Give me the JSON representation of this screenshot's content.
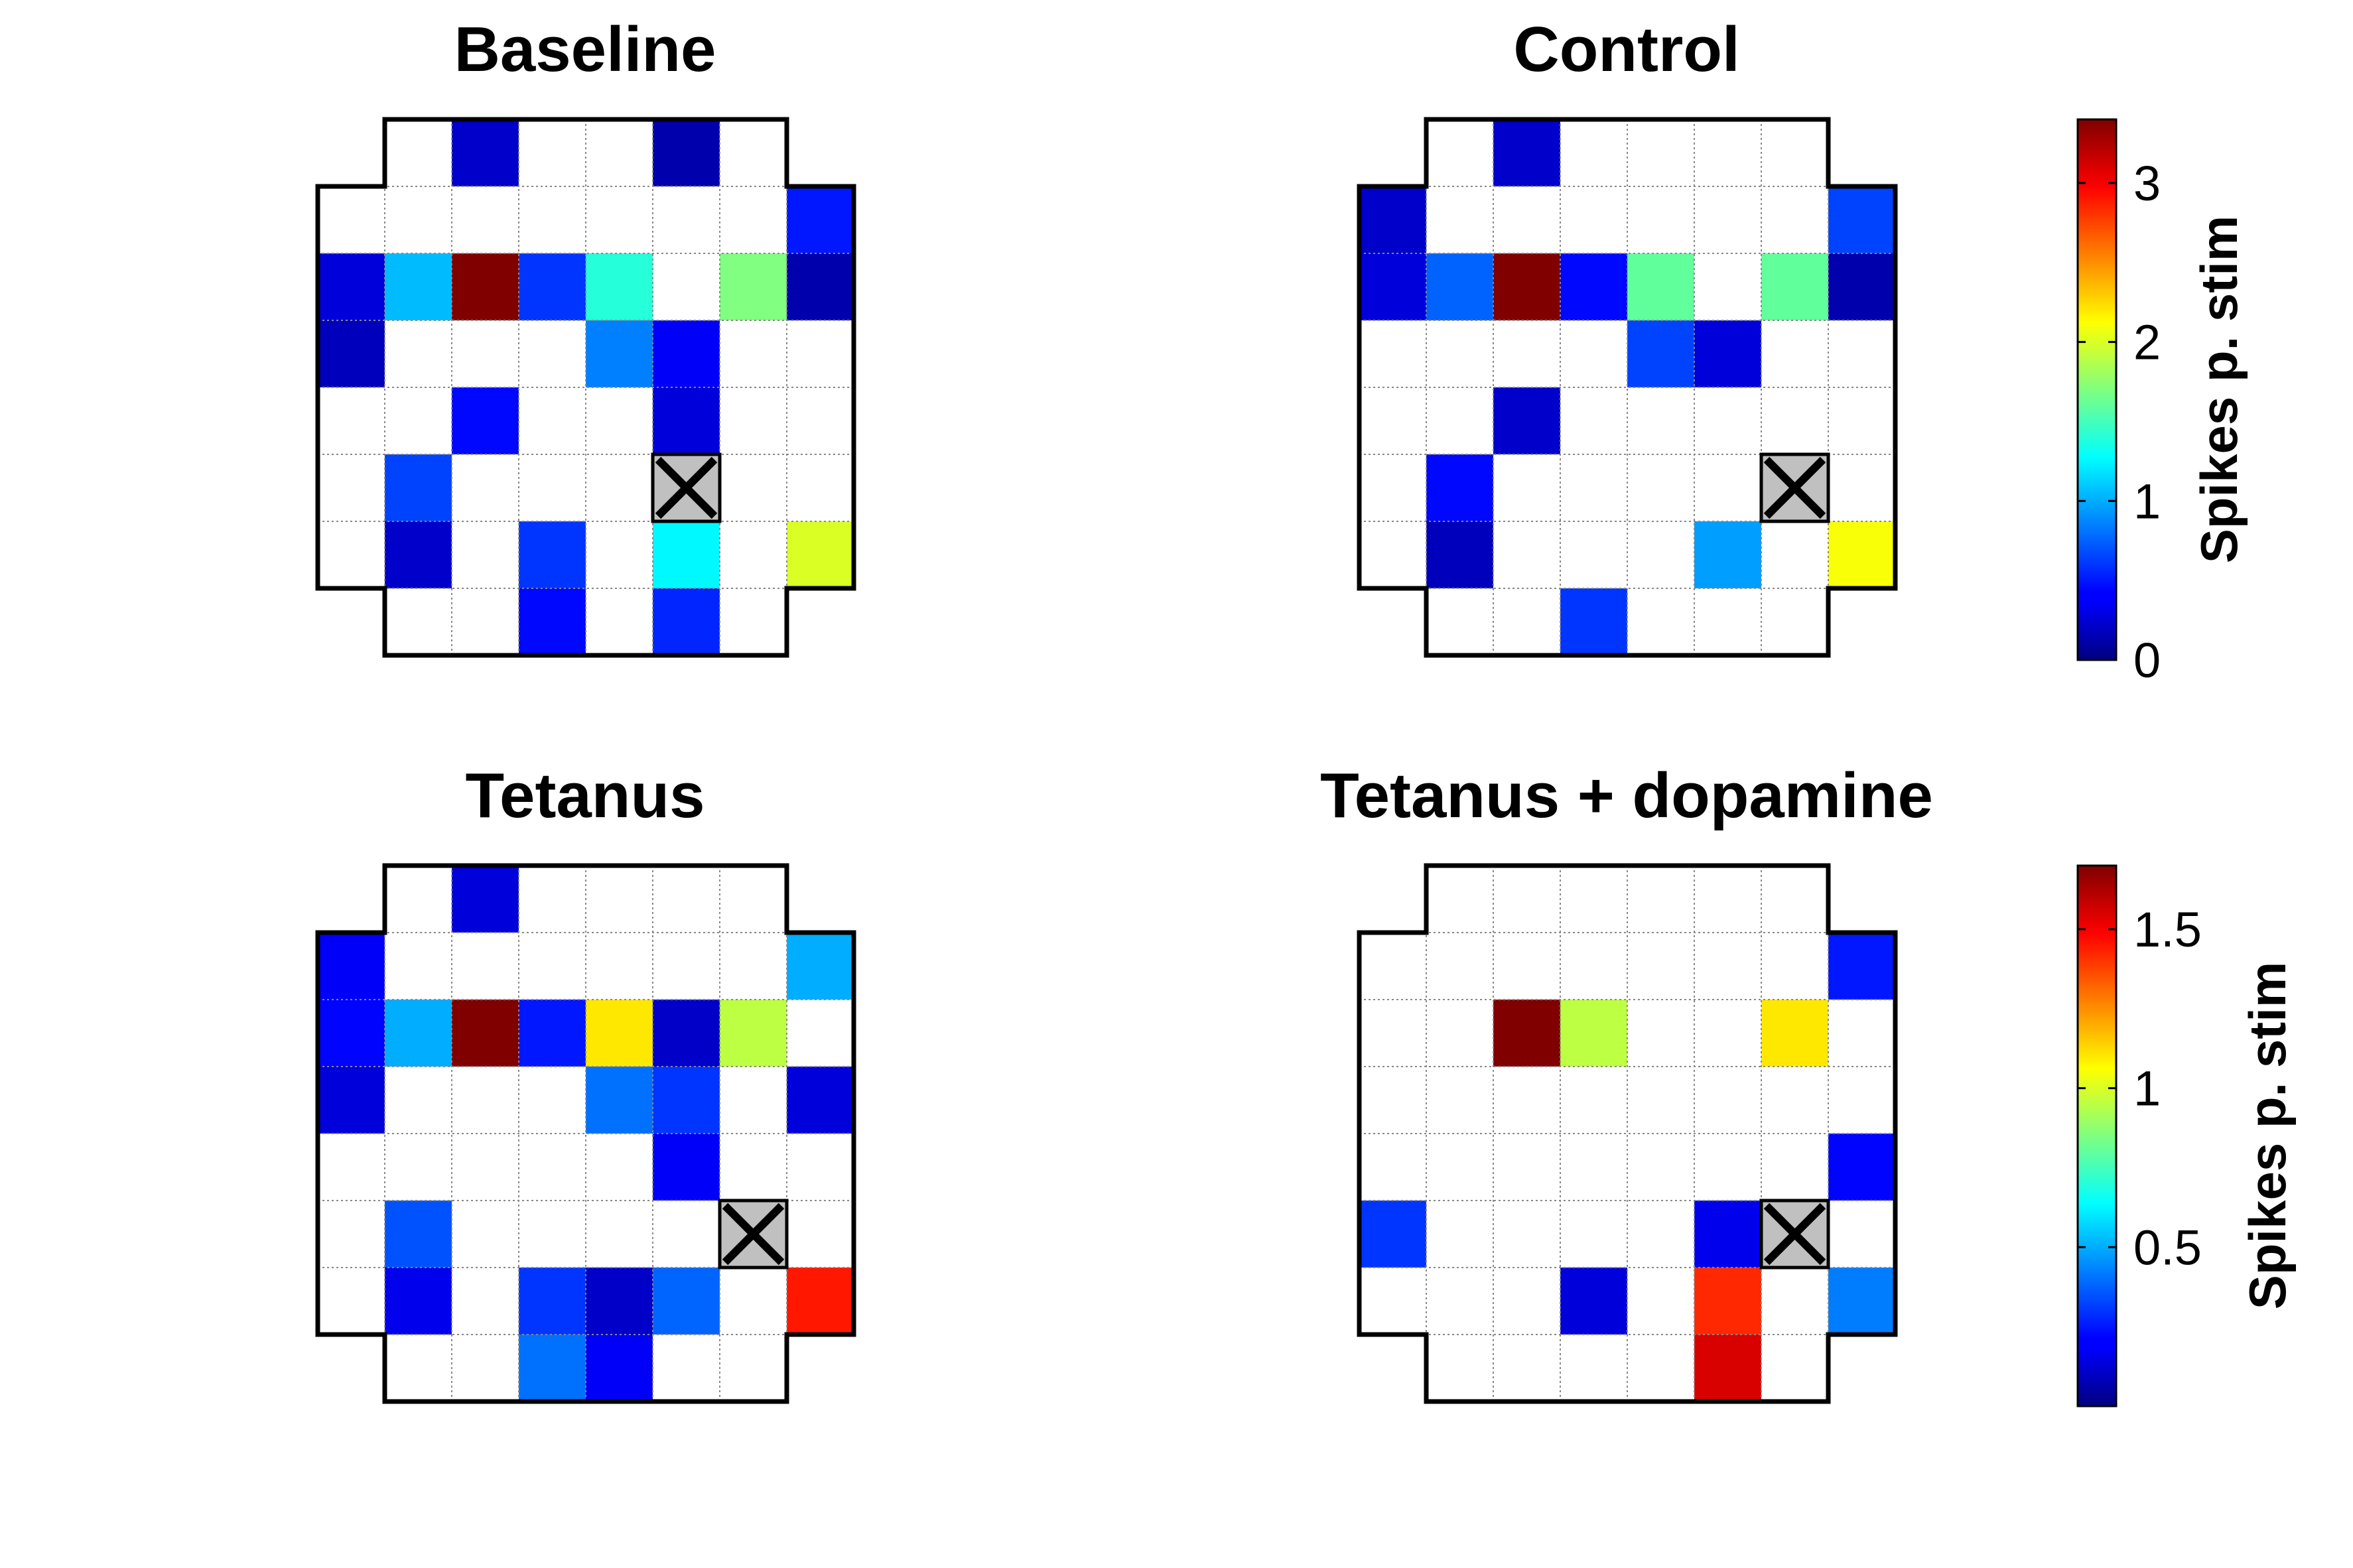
{
  "chart_data": [
    {
      "type": "heatmap",
      "title": "Baseline",
      "colorbar": "top",
      "stim_cell": [
        5,
        5
      ],
      "grid_rows": 8,
      "grid_cols": 8,
      "cells": [
        {
          "r": 0,
          "c": 2,
          "v": 0.25
        },
        {
          "r": 0,
          "c": 5,
          "v": 0.15
        },
        {
          "r": 1,
          "c": 7,
          "v": 0.5
        },
        {
          "r": 2,
          "c": 0,
          "v": 0.3
        },
        {
          "r": 2,
          "c": 1,
          "v": 1.05
        },
        {
          "r": 2,
          "c": 2,
          "v": 3.4
        },
        {
          "r": 2,
          "c": 3,
          "v": 0.6
        },
        {
          "r": 2,
          "c": 4,
          "v": 1.4
        },
        {
          "r": 2,
          "c": 6,
          "v": 1.7
        },
        {
          "r": 2,
          "c": 7,
          "v": 0.15
        },
        {
          "r": 3,
          "c": 0,
          "v": 0.2
        },
        {
          "r": 3,
          "c": 4,
          "v": 0.85
        },
        {
          "r": 3,
          "c": 5,
          "v": 0.4
        },
        {
          "r": 4,
          "c": 2,
          "v": 0.45
        },
        {
          "r": 4,
          "c": 5,
          "v": 0.3
        },
        {
          "r": 5,
          "c": 1,
          "v": 0.65
        },
        {
          "r": 5,
          "c": 5,
          "v": 0.5
        },
        {
          "r": 6,
          "c": 1,
          "v": 0.25
        },
        {
          "r": 6,
          "c": 3,
          "v": 0.6
        },
        {
          "r": 6,
          "c": 5,
          "v": 1.25
        },
        {
          "r": 6,
          "c": 7,
          "v": 2.0
        },
        {
          "r": 7,
          "c": 3,
          "v": 0.45
        },
        {
          "r": 7,
          "c": 5,
          "v": 0.55
        }
      ]
    },
    {
      "type": "heatmap",
      "title": "Control",
      "colorbar": "top",
      "stim_cell": [
        5,
        6
      ],
      "grid_rows": 8,
      "grid_cols": 8,
      "cells": [
        {
          "r": 0,
          "c": 2,
          "v": 0.25
        },
        {
          "r": 1,
          "c": 0,
          "v": 0.25
        },
        {
          "r": 1,
          "c": 7,
          "v": 0.65
        },
        {
          "r": 2,
          "c": 0,
          "v": 0.3
        },
        {
          "r": 2,
          "c": 1,
          "v": 0.75
        },
        {
          "r": 2,
          "c": 2,
          "v": 3.4
        },
        {
          "r": 2,
          "c": 3,
          "v": 0.45
        },
        {
          "r": 2,
          "c": 4,
          "v": 1.6
        },
        {
          "r": 2,
          "c": 6,
          "v": 1.6
        },
        {
          "r": 2,
          "c": 7,
          "v": 0.15
        },
        {
          "r": 3,
          "c": 4,
          "v": 0.65
        },
        {
          "r": 3,
          "c": 5,
          "v": 0.3
        },
        {
          "r": 4,
          "c": 2,
          "v": 0.25
        },
        {
          "r": 5,
          "c": 1,
          "v": 0.45
        },
        {
          "r": 6,
          "c": 1,
          "v": 0.2
        },
        {
          "r": 6,
          "c": 5,
          "v": 0.95
        },
        {
          "r": 6,
          "c": 7,
          "v": 2.1
        },
        {
          "r": 7,
          "c": 3,
          "v": 0.6
        }
      ]
    },
    {
      "type": "heatmap",
      "title": "Tetanus",
      "colorbar": "bottom",
      "stim_cell": [
        5,
        6
      ],
      "grid_rows": 8,
      "grid_cols": 8,
      "cells": [
        {
          "r": 0,
          "c": 2,
          "v": 0.15
        },
        {
          "r": 1,
          "c": 0,
          "v": 0.2
        },
        {
          "r": 1,
          "c": 7,
          "v": 0.5
        },
        {
          "r": 2,
          "c": 0,
          "v": 0.22
        },
        {
          "r": 2,
          "c": 1,
          "v": 0.5
        },
        {
          "r": 2,
          "c": 2,
          "v": 1.7
        },
        {
          "r": 2,
          "c": 3,
          "v": 0.25
        },
        {
          "r": 2,
          "c": 4,
          "v": 1.1
        },
        {
          "r": 2,
          "c": 5,
          "v": 0.12
        },
        {
          "r": 2,
          "c": 6,
          "v": 0.95
        },
        {
          "r": 3,
          "c": 0,
          "v": 0.15
        },
        {
          "r": 3,
          "c": 4,
          "v": 0.4
        },
        {
          "r": 3,
          "c": 5,
          "v": 0.3
        },
        {
          "r": 3,
          "c": 7,
          "v": 0.15
        },
        {
          "r": 4,
          "c": 5,
          "v": 0.2
        },
        {
          "r": 5,
          "c": 1,
          "v": 0.35
        },
        {
          "r": 6,
          "c": 1,
          "v": 0.18
        },
        {
          "r": 6,
          "c": 3,
          "v": 0.3
        },
        {
          "r": 6,
          "c": 4,
          "v": 0.12
        },
        {
          "r": 6,
          "c": 5,
          "v": 0.38
        },
        {
          "r": 6,
          "c": 7,
          "v": 1.45
        },
        {
          "r": 7,
          "c": 3,
          "v": 0.4
        },
        {
          "r": 7,
          "c": 4,
          "v": 0.2
        }
      ]
    },
    {
      "type": "heatmap",
      "title": "Tetanus + dopamine",
      "colorbar": "bottom",
      "stim_cell": [
        5,
        6
      ],
      "grid_rows": 8,
      "grid_cols": 8,
      "cells": [
        {
          "r": 1,
          "c": 7,
          "v": 0.25
        },
        {
          "r": 2,
          "c": 2,
          "v": 1.7
        },
        {
          "r": 2,
          "c": 3,
          "v": 0.95
        },
        {
          "r": 2,
          "c": 6,
          "v": 1.1
        },
        {
          "r": 4,
          "c": 7,
          "v": 0.22
        },
        {
          "r": 5,
          "c": 0,
          "v": 0.3
        },
        {
          "r": 5,
          "c": 5,
          "v": 0.18
        },
        {
          "r": 6,
          "c": 3,
          "v": 0.15
        },
        {
          "r": 6,
          "c": 5,
          "v": 1.42
        },
        {
          "r": 6,
          "c": 7,
          "v": 0.42
        },
        {
          "r": 7,
          "c": 5,
          "v": 1.55
        }
      ]
    }
  ],
  "colorbars": {
    "top": {
      "label": "Spikes p. stim",
      "min": 0,
      "max": 3.4,
      "ticks": [
        {
          "value": 0,
          "label": "0"
        },
        {
          "value": 1,
          "label": "1"
        },
        {
          "value": 2,
          "label": "2"
        },
        {
          "value": 3,
          "label": "3"
        }
      ]
    },
    "bottom": {
      "label": "Spikes p. stim",
      "min": 0,
      "max": 1.7,
      "ticks": [
        {
          "value": 0.5,
          "label": "0.5"
        },
        {
          "value": 1,
          "label": "1"
        },
        {
          "value": 1.5,
          "label": "1.5"
        }
      ]
    }
  }
}
